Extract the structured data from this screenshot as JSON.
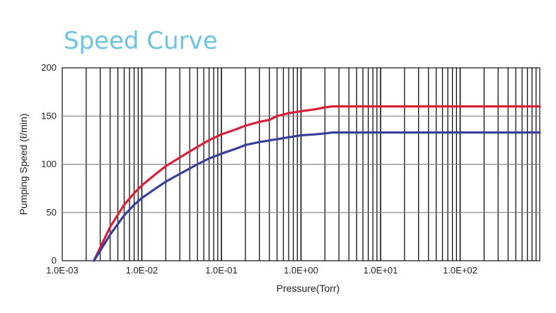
{
  "chart_data": {
    "type": "line",
    "title": "Speed Curve",
    "xlabel": "Pressure(Torr)",
    "ylabel": "Pumping Speed (ℓ/min)",
    "x_scale": "log",
    "xlim": [
      0.001,
      1000
    ],
    "ylim": [
      0,
      200
    ],
    "x_tick_labels": [
      "1.0E-03",
      "1.0E-02",
      "1.0E-01",
      "1.0E+00",
      "1.0E+01",
      "1.0E+02"
    ],
    "x_tick_values": [
      0.001,
      0.01,
      0.1,
      1,
      10,
      100
    ],
    "y_tick_labels": [
      "0",
      "50",
      "100",
      "150",
      "200"
    ],
    "y_tick_values": [
      0,
      50,
      100,
      150,
      200
    ],
    "grid": true,
    "legend": "none",
    "series": [
      {
        "color": "#d6213a",
        "x": [
          0.0025,
          0.004,
          0.006,
          0.008,
          0.01,
          0.015,
          0.02,
          0.03,
          0.05,
          0.07,
          0.1,
          0.15,
          0.2,
          0.3,
          0.4,
          0.5,
          0.7,
          1.0,
          1.5,
          2.0,
          2.5,
          3.0,
          10,
          100,
          1000
        ],
        "values": [
          0,
          35,
          58,
          70,
          78,
          90,
          98,
          107,
          118,
          125,
          131,
          136,
          140,
          144,
          146,
          150,
          153,
          155,
          157,
          159,
          160,
          160,
          160,
          160,
          160
        ]
      },
      {
        "color": "#3b3f9c",
        "x": [
          0.0025,
          0.004,
          0.006,
          0.008,
          0.01,
          0.015,
          0.02,
          0.03,
          0.05,
          0.07,
          0.1,
          0.15,
          0.2,
          0.3,
          0.5,
          0.7,
          1.0,
          1.5,
          2.0,
          2.5,
          3.0,
          10,
          100,
          1000
        ],
        "values": [
          0,
          27,
          47,
          58,
          65,
          75,
          82,
          90,
          100,
          106,
          111,
          116,
          120,
          123,
          126,
          128,
          130,
          131,
          132,
          133,
          133,
          133,
          133,
          133
        ]
      }
    ]
  }
}
